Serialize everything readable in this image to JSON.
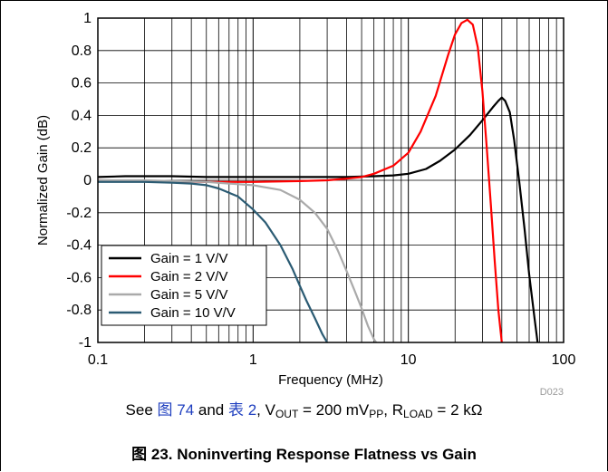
{
  "chart_data": {
    "type": "line",
    "title": "",
    "xlabel": "Frequency (MHz)",
    "ylabel": "Normalized Gain (dB)",
    "x_scale": "log",
    "xlim": [
      0.1,
      100
    ],
    "ylim": [
      -1,
      1
    ],
    "x_ticks": [
      "0.1",
      "1",
      "10",
      "100"
    ],
    "y_ticks": [
      "1",
      "0.8",
      "0.6",
      "0.4",
      "0.2",
      "0",
      "-0.2",
      "-0.4",
      "-0.6",
      "-0.8",
      "-1"
    ],
    "grid": true,
    "legend_position": "bottom-left",
    "code": "D023",
    "series": [
      {
        "name": "Gain = 1 V/V",
        "color": "#000000",
        "x": [
          0.1,
          0.15,
          0.3,
          0.5,
          1,
          2,
          4,
          6,
          8,
          10,
          13,
          16,
          20,
          25,
          30,
          35,
          38,
          40,
          42,
          45,
          48,
          52,
          56,
          60,
          65,
          68
        ],
        "y": [
          0.02,
          0.025,
          0.025,
          0.02,
          0.02,
          0.02,
          0.02,
          0.025,
          0.03,
          0.04,
          0.07,
          0.12,
          0.19,
          0.28,
          0.37,
          0.45,
          0.49,
          0.51,
          0.49,
          0.42,
          0.25,
          -0.02,
          -0.3,
          -0.58,
          -0.85,
          -1.0
        ]
      },
      {
        "name": "Gain = 2 V/V",
        "color": "#ff0000",
        "x": [
          0.1,
          0.2,
          0.5,
          1,
          2,
          3,
          4,
          5,
          6,
          8,
          10,
          12,
          15,
          18,
          20,
          22,
          24,
          26,
          28,
          30,
          32,
          34,
          36,
          38,
          40
        ],
        "y": [
          0.0,
          -0.005,
          -0.01,
          -0.01,
          -0.005,
          0.0,
          0.01,
          0.02,
          0.04,
          0.09,
          0.17,
          0.3,
          0.52,
          0.77,
          0.9,
          0.97,
          0.99,
          0.96,
          0.82,
          0.55,
          0.2,
          -0.15,
          -0.5,
          -0.8,
          -1.0
        ]
      },
      {
        "name": "Gain = 5 V/V",
        "color": "#aaaaaa",
        "x": [
          0.1,
          0.2,
          0.3,
          0.5,
          0.7,
          1,
          1.5,
          2,
          2.5,
          3,
          3.5,
          4,
          4.5,
          5,
          5.5,
          6,
          6.2
        ],
        "y": [
          0.0,
          0.0,
          -0.005,
          -0.01,
          -0.02,
          -0.03,
          -0.06,
          -0.12,
          -0.2,
          -0.3,
          -0.43,
          -0.56,
          -0.68,
          -0.79,
          -0.9,
          -0.98,
          -1.0
        ]
      },
      {
        "name": "Gain = 10 V/V",
        "color": "#2b5b73",
        "x": [
          0.1,
          0.2,
          0.3,
          0.4,
          0.5,
          0.6,
          0.8,
          1,
          1.2,
          1.5,
          1.8,
          2,
          2.2,
          2.5,
          2.8,
          3
        ],
        "y": [
          -0.01,
          -0.01,
          -0.015,
          -0.02,
          -0.03,
          -0.05,
          -0.1,
          -0.18,
          -0.26,
          -0.4,
          -0.55,
          -0.65,
          -0.74,
          -0.85,
          -0.95,
          -1.0
        ]
      }
    ]
  },
  "note": {
    "see": "See ",
    "fig_ref": "图 74",
    "and": " and ",
    "table_ref": "表 2",
    "comma1": ", V",
    "vout_sub": "OUT",
    "vout_val": " = 200 mV",
    "pp_sub": "PP",
    "comma2": ", R",
    "rload_sub": "LOAD",
    "rload_val": " = 2 kΩ"
  },
  "caption": "图 23. Noninverting Response Flatness vs Gain"
}
